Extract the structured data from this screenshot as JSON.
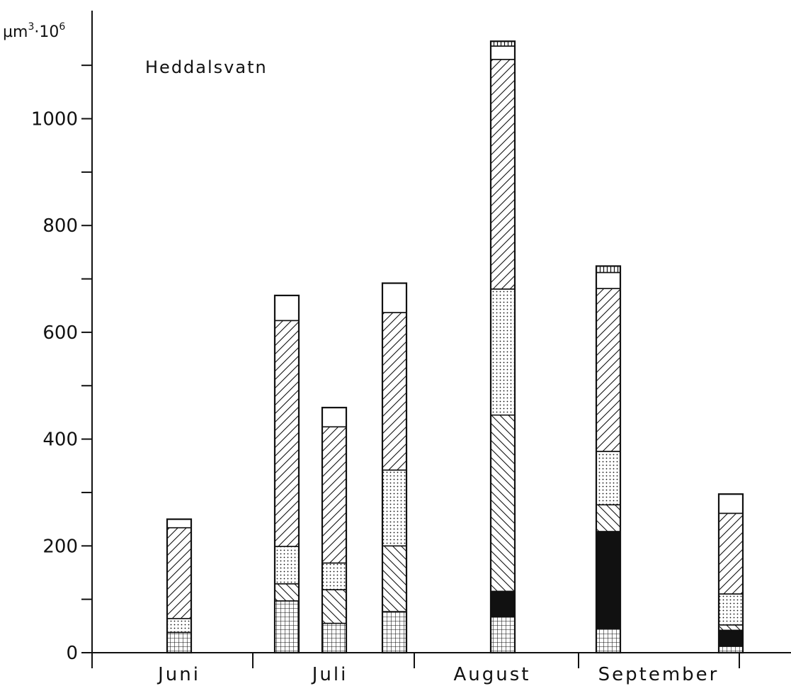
{
  "chart_data": {
    "type": "bar",
    "stacked": true,
    "title": "Heddalsvatn",
    "ylabel": "µm³·10⁶",
    "ylabel_parts": {
      "base": "µm",
      "exp1": "3",
      "mid": "·10",
      "exp2": "6"
    },
    "ylim": [
      0,
      1150
    ],
    "yticks": [
      0,
      200,
      400,
      600,
      800,
      1000
    ],
    "months": [
      "Juni",
      "Juli",
      "August",
      "September"
    ],
    "layer_patterns": [
      "grid",
      "solid",
      "backslash",
      "dots",
      "slash",
      "blank",
      "vbars"
    ],
    "bars": [
      {
        "month": "Juni",
        "segments": [
          38,
          0,
          0,
          26,
          170,
          16,
          0
        ]
      },
      {
        "month": "Juli",
        "segments": [
          97,
          0,
          32,
          70,
          423,
          47,
          0
        ]
      },
      {
        "month": "Juli",
        "segments": [
          55,
          0,
          63,
          50,
          255,
          36,
          0
        ]
      },
      {
        "month": "Juli",
        "segments": [
          77,
          0,
          123,
          142,
          295,
          55,
          0
        ]
      },
      {
        "month": "August",
        "segments": [
          67,
          48,
          330,
          236,
          430,
          25,
          9
        ]
      },
      {
        "month": "September",
        "segments": [
          45,
          182,
          50,
          100,
          305,
          30,
          12
        ]
      },
      {
        "month": "September",
        "segments": [
          12,
          30,
          10,
          58,
          151,
          36,
          0
        ]
      }
    ],
    "grid": false,
    "legend": "none"
  }
}
